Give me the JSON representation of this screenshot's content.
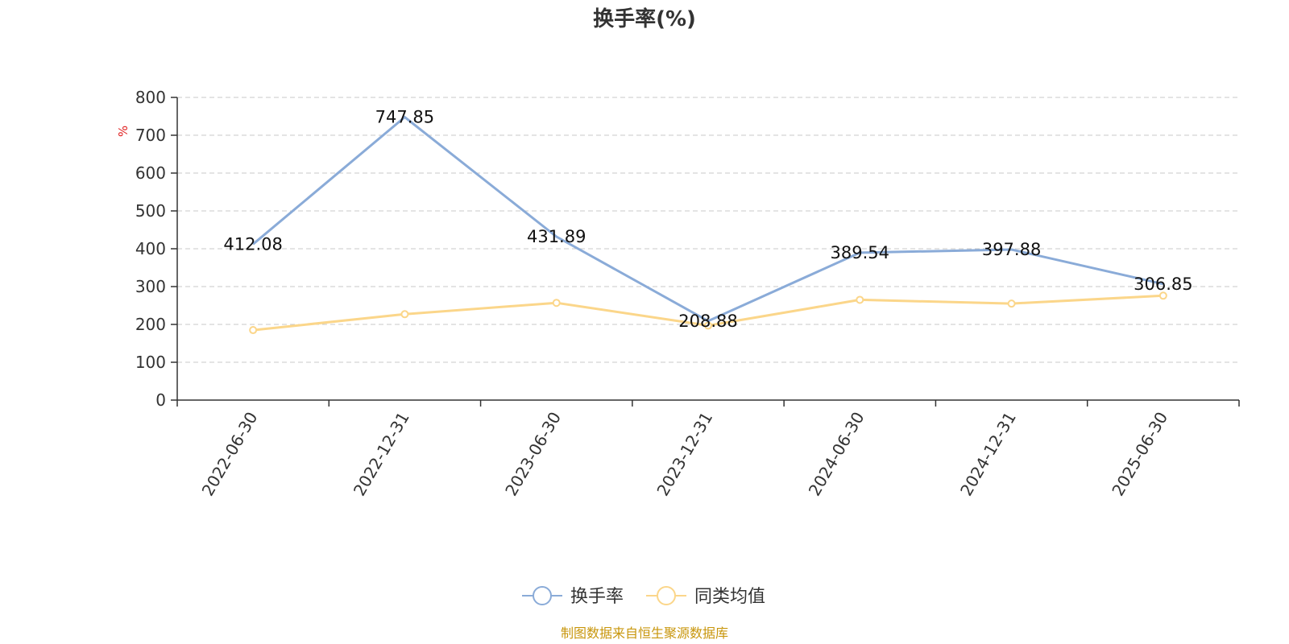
{
  "chart_data": {
    "type": "line",
    "title": "换手率(%)",
    "ylabel": "%",
    "xlabel": "",
    "ylim": [
      0,
      800
    ],
    "yticks": [
      0,
      100,
      200,
      300,
      400,
      500,
      600,
      700,
      800
    ],
    "grid": true,
    "legend_position": "bottom-center",
    "categories": [
      "2022-06-30",
      "2022-12-31",
      "2023-06-30",
      "2023-12-31",
      "2024-06-30",
      "2024-12-31",
      "2025-06-30"
    ],
    "series": [
      {
        "name": "换手率",
        "color": "#8aabd8",
        "values": [
          412.08,
          747.85,
          431.89,
          208.88,
          389.54,
          397.88,
          306.85
        ],
        "show_labels": true,
        "show_markers": false
      },
      {
        "name": "同类均值",
        "color": "#fbd68a",
        "values": [
          185,
          227,
          257,
          197,
          265,
          255,
          276
        ],
        "show_labels": false,
        "show_markers": true
      }
    ]
  },
  "source_note": "制图数据来自恒生聚源数据库"
}
